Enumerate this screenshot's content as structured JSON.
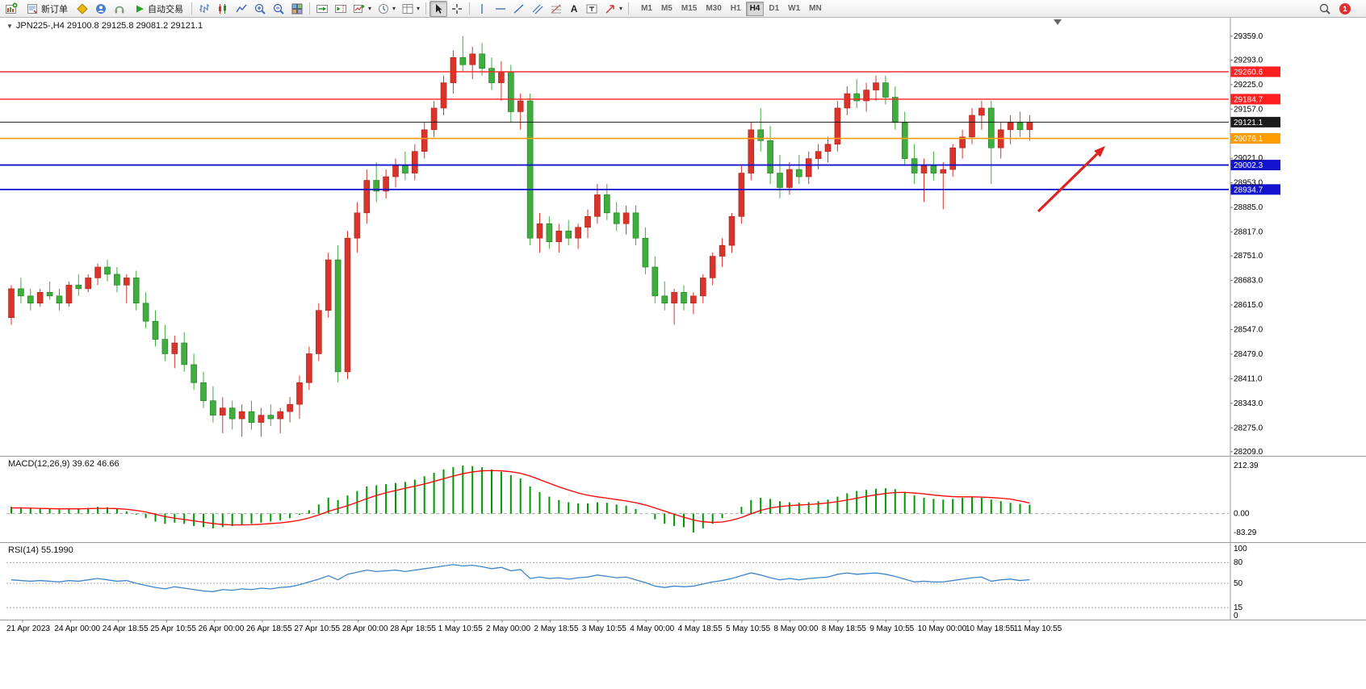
{
  "icons": {
    "one_click": "▼",
    "caret": "▾",
    "text_tool": "A",
    "label_tool": "T"
  },
  "toolbar": {
    "new_order_label": "新订单",
    "autotrade_label": "自动交易",
    "timeframes": [
      "M1",
      "M5",
      "M15",
      "M30",
      "H1",
      "H4",
      "D1",
      "W1",
      "MN"
    ],
    "active_timeframe": "H4",
    "notification_count": "1"
  },
  "chart": {
    "info_line": "JPN225-,H4  29100.8 29125.8 29081.2 29121.1",
    "symbol": "JPN225-",
    "period": "H4",
    "open": "29100.8",
    "high": "29125.8",
    "low": "29081.2",
    "close": "29121.1"
  },
  "chart_data": {
    "type": "candlestick",
    "symbol": "JPN225-",
    "timeframe": "H4",
    "ylim": [
      28198,
      29410
    ],
    "grid": false,
    "colors": {
      "bull": "#d9342b",
      "bear": "#3fae3f",
      "macd_hist": "#009a00",
      "macd_signal": "#ff0000",
      "rsi_line": "#3d85c8"
    },
    "y_ticks": [
      "29359.0",
      "29293.0",
      "29225.0",
      "29157.0",
      "29021.0",
      "28953.0",
      "28885.0",
      "28817.0",
      "28751.0",
      "28683.0",
      "28615.0",
      "28547.0",
      "28479.0",
      "28411.0",
      "28343.0",
      "28275.0",
      "28209.0"
    ],
    "x_labels": [
      "21 Apr 2023",
      "24 Apr 00:00",
      "24 Apr 18:55",
      "25 Apr 10:55",
      "26 Apr 00:00",
      "26 Apr 18:55",
      "27 Apr 10:55",
      "28 Apr 00:00",
      "28 Apr 18:55",
      "1 May 10:55",
      "2 May 00:00",
      "2 May 18:55",
      "3 May 10:55",
      "4 May 00:00",
      "4 May 18:55",
      "5 May 10:55",
      "8 May 00:00",
      "8 May 18:55",
      "9 May 10:55",
      "10 May 00:00",
      "10 May 18:55",
      "11 May 10:55"
    ],
    "hlines": [
      {
        "price": 29260.6,
        "label": "29260.6",
        "color": "#ff1f1f",
        "width": 1.4,
        "name": "resistance-line-upper"
      },
      {
        "price": 29184.7,
        "label": "29184.7",
        "color": "#ff1f1f",
        "width": 1.4,
        "name": "resistance-line-lower"
      },
      {
        "price": 29121.1,
        "label": "29121.1",
        "color": "#1a1a1a",
        "width": 1,
        "name": "current-price-line"
      },
      {
        "price": 29076.1,
        "label": "29076.1",
        "color": "#ff9c00",
        "width": 1.6,
        "name": "pivot-line"
      },
      {
        "price": 29002.3,
        "label": "29002.3",
        "color": "#1414cc",
        "width": 1.8,
        "name": "support-line-upper"
      },
      {
        "price": 28934.7,
        "label": "28934.7",
        "color": "#1414cc",
        "width": 1.8,
        "name": "support-line-lower"
      }
    ],
    "current_price": 29121.1,
    "candles": [
      [
        28580,
        28670,
        28560,
        28660
      ],
      [
        28660,
        28690,
        28620,
        28640
      ],
      [
        28640,
        28660,
        28600,
        28620
      ],
      [
        28620,
        28660,
        28610,
        28650
      ],
      [
        28650,
        28680,
        28630,
        28640
      ],
      [
        28640,
        28660,
        28600,
        28620
      ],
      [
        28620,
        28680,
        28610,
        28670
      ],
      [
        28670,
        28700,
        28640,
        28660
      ],
      [
        28660,
        28700,
        28650,
        28690
      ],
      [
        28690,
        28730,
        28670,
        28720
      ],
      [
        28720,
        28740,
        28680,
        28700
      ],
      [
        28700,
        28720,
        28650,
        28670
      ],
      [
        28670,
        28700,
        28620,
        28690
      ],
      [
        28690,
        28710,
        28600,
        28620
      ],
      [
        28620,
        28650,
        28550,
        28570
      ],
      [
        28570,
        28600,
        28500,
        28520
      ],
      [
        28520,
        28560,
        28460,
        28480
      ],
      [
        28480,
        28530,
        28440,
        28510
      ],
      [
        28510,
        28540,
        28430,
        28450
      ],
      [
        28450,
        28480,
        28380,
        28400
      ],
      [
        28400,
        28430,
        28330,
        28350
      ],
      [
        28350,
        28390,
        28290,
        28310
      ],
      [
        28310,
        28360,
        28260,
        28330
      ],
      [
        28330,
        28350,
        28270,
        28300
      ],
      [
        28300,
        28340,
        28250,
        28320
      ],
      [
        28320,
        28350,
        28270,
        28290
      ],
      [
        28290,
        28330,
        28250,
        28310
      ],
      [
        28310,
        28340,
        28280,
        28300
      ],
      [
        28300,
        28330,
        28260,
        28320
      ],
      [
        28320,
        28360,
        28290,
        28340
      ],
      [
        28340,
        28420,
        28300,
        28400
      ],
      [
        28400,
        28500,
        28380,
        28480
      ],
      [
        28480,
        28620,
        28460,
        28600
      ],
      [
        28600,
        28760,
        28580,
        28740
      ],
      [
        28740,
        28780,
        28400,
        28430
      ],
      [
        28430,
        28820,
        28410,
        28800
      ],
      [
        28800,
        28900,
        28760,
        28870
      ],
      [
        28870,
        28990,
        28840,
        28960
      ],
      [
        28960,
        29010,
        28900,
        28930
      ],
      [
        28930,
        28990,
        28910,
        28970
      ],
      [
        28970,
        29020,
        28940,
        29000
      ],
      [
        29000,
        29040,
        28960,
        28980
      ],
      [
        28980,
        29060,
        28960,
        29040
      ],
      [
        29040,
        29120,
        29020,
        29100
      ],
      [
        29100,
        29180,
        29080,
        29160
      ],
      [
        29160,
        29250,
        29140,
        29230
      ],
      [
        29230,
        29320,
        29200,
        29300
      ],
      [
        29300,
        29359,
        29260,
        29280
      ],
      [
        29280,
        29330,
        29240,
        29310
      ],
      [
        29310,
        29340,
        29250,
        29270
      ],
      [
        29270,
        29300,
        29210,
        29230
      ],
      [
        29230,
        29290,
        29180,
        29260
      ],
      [
        29260,
        29280,
        29120,
        29150
      ],
      [
        29150,
        29200,
        29100,
        29180
      ],
      [
        29180,
        29200,
        28780,
        28800
      ],
      [
        28800,
        28870,
        28760,
        28840
      ],
      [
        28840,
        28860,
        28770,
        28790
      ],
      [
        28790,
        28840,
        28760,
        28820
      ],
      [
        28820,
        28850,
        28780,
        28800
      ],
      [
        28800,
        28840,
        28770,
        28830
      ],
      [
        28830,
        28880,
        28800,
        28860
      ],
      [
        28860,
        28950,
        28840,
        28920
      ],
      [
        28920,
        28950,
        28850,
        28870
      ],
      [
        28870,
        28900,
        28820,
        28840
      ],
      [
        28840,
        28890,
        28810,
        28870
      ],
      [
        28870,
        28890,
        28780,
        28800
      ],
      [
        28800,
        28830,
        28700,
        28720
      ],
      [
        28720,
        28750,
        28620,
        28640
      ],
      [
        28640,
        28680,
        28600,
        28620
      ],
      [
        28620,
        28660,
        28560,
        28650
      ],
      [
        28650,
        28670,
        28600,
        28620
      ],
      [
        28620,
        28650,
        28590,
        28640
      ],
      [
        28640,
        28700,
        28620,
        28690
      ],
      [
        28690,
        28760,
        28670,
        28750
      ],
      [
        28750,
        28800,
        28720,
        28780
      ],
      [
        28780,
        28870,
        28760,
        28860
      ],
      [
        28860,
        29000,
        28840,
        28980
      ],
      [
        28980,
        29120,
        28960,
        29100
      ],
      [
        29100,
        29160,
        29040,
        29070
      ],
      [
        29070,
        29110,
        28950,
        28980
      ],
      [
        28980,
        29030,
        28910,
        28940
      ],
      [
        28940,
        29010,
        28920,
        28990
      ],
      [
        28990,
        29030,
        28950,
        28970
      ],
      [
        28970,
        29040,
        28950,
        29020
      ],
      [
        29020,
        29060,
        28990,
        29040
      ],
      [
        29040,
        29080,
        29010,
        29060
      ],
      [
        29060,
        29180,
        29040,
        29160
      ],
      [
        29160,
        29220,
        29140,
        29200
      ],
      [
        29200,
        29240,
        29160,
        29180
      ],
      [
        29180,
        29230,
        29150,
        29210
      ],
      [
        29210,
        29250,
        29180,
        29230
      ],
      [
        29230,
        29250,
        29170,
        29190
      ],
      [
        29190,
        29220,
        29100,
        29120
      ],
      [
        29120,
        29150,
        29000,
        29020
      ],
      [
        29020,
        29060,
        28950,
        28980
      ],
      [
        28980,
        29020,
        28900,
        29000
      ],
      [
        29000,
        29040,
        28960,
        28980
      ],
      [
        28980,
        29010,
        28880,
        28990
      ],
      [
        28990,
        29060,
        28970,
        29050
      ],
      [
        29050,
        29100,
        29020,
        29080
      ],
      [
        29080,
        29160,
        29060,
        29140
      ],
      [
        29140,
        29180,
        29100,
        29160
      ],
      [
        29160,
        29180,
        28950,
        29050
      ],
      [
        29050,
        29120,
        29020,
        29100
      ],
      [
        29100,
        29140,
        29060,
        29120
      ],
      [
        29120,
        29150,
        29080,
        29100
      ],
      [
        29100,
        29140,
        29070,
        29121.1
      ]
    ],
    "macd": {
      "label": "MACD(12,26,9) 39.62 46.66",
      "ticks": [
        "212.39",
        "0.00",
        "-83.29"
      ],
      "hist": [
        30,
        28,
        25,
        22,
        20,
        18,
        20,
        22,
        25,
        30,
        28,
        20,
        10,
        -5,
        -20,
        -35,
        -45,
        -40,
        -45,
        -55,
        -60,
        -65,
        -60,
        -55,
        -50,
        -45,
        -40,
        -35,
        -30,
        -20,
        -5,
        15,
        40,
        70,
        60,
        80,
        100,
        120,
        125,
        130,
        135,
        140,
        150,
        165,
        180,
        195,
        205,
        212.4,
        210,
        205,
        195,
        185,
        170,
        155,
        120,
        95,
        75,
        60,
        50,
        45,
        45,
        50,
        48,
        40,
        35,
        20,
        0,
        -25,
        -45,
        -55,
        -60,
        -83.3,
        -65,
        -45,
        -20,
        0,
        30,
        60,
        70,
        65,
        55,
        50,
        48,
        50,
        55,
        62,
        75,
        90,
        100,
        105,
        110,
        112,
        108,
        95,
        80,
        70,
        65,
        62,
        65,
        70,
        75,
        70,
        62,
        55,
        48,
        43,
        39.6
      ],
      "signal": [
        25,
        25,
        24,
        23,
        22,
        21,
        21,
        21,
        22,
        23,
        23,
        22,
        19,
        14,
        7,
        -3,
        -13,
        -20,
        -26,
        -32,
        -38,
        -44,
        -48,
        -50,
        -50,
        -49,
        -47,
        -44,
        -41,
        -36,
        -29,
        -19,
        -6,
        10,
        22,
        35,
        50,
        66,
        80,
        92,
        102,
        112,
        121,
        131,
        142,
        154,
        166,
        176,
        184,
        189,
        190,
        189,
        185,
        178,
        166,
        150,
        134,
        118,
        104,
        91,
        81,
        74,
        68,
        62,
        56,
        48,
        38,
        25,
        11,
        -3,
        -16,
        -28,
        -36,
        -39,
        -37,
        -29,
        -17,
        -1,
        14,
        25,
        31,
        35,
        38,
        40,
        43,
        47,
        53,
        60,
        68,
        76,
        83,
        89,
        93,
        94,
        91,
        87,
        82,
        78,
        75,
        74,
        74,
        73,
        71,
        68,
        64,
        56,
        46.7
      ]
    },
    "rsi": {
      "label": "RSI(14) 55.1990",
      "ticks": [
        "100",
        "80",
        "50",
        "15",
        "0"
      ],
      "levels": [
        80,
        50,
        15
      ],
      "values": [
        55,
        54,
        53,
        54,
        53,
        52,
        54,
        53,
        55,
        57,
        55,
        53,
        54,
        50,
        47,
        44,
        42,
        45,
        43,
        41,
        39,
        38,
        41,
        40,
        42,
        41,
        43,
        42,
        44,
        45,
        48,
        52,
        56,
        61,
        55,
        63,
        66,
        69,
        67,
        68,
        69,
        67,
        69,
        71,
        73,
        75,
        77,
        75,
        76,
        74,
        71,
        73,
        68,
        70,
        57,
        59,
        57,
        58,
        56,
        58,
        59,
        62,
        60,
        58,
        59,
        55,
        51,
        46,
        44,
        46,
        45,
        46,
        49,
        52,
        54,
        57,
        61,
        65,
        62,
        58,
        55,
        57,
        55,
        57,
        58,
        59,
        63,
        65,
        63,
        64,
        65,
        63,
        60,
        56,
        52,
        53,
        52,
        52,
        54,
        56,
        58,
        59,
        53,
        55,
        56,
        54,
        55.2
      ]
    },
    "annotation_arrow": {
      "from": [
        1286,
        262
      ],
      "to": [
        1369,
        181
      ],
      "color": "#dd2222"
    }
  }
}
